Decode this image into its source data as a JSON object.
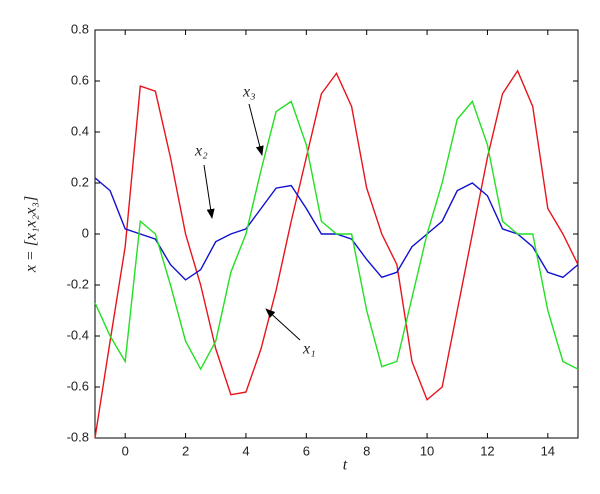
{
  "chart_data": {
    "type": "line",
    "xlabel": "t",
    "ylabel": "x = [x₁x₂x₃]",
    "x": [
      -1,
      -0.5,
      0,
      0.5,
      1,
      1.5,
      2,
      2.5,
      3,
      3.5,
      4,
      4.5,
      5,
      5.5,
      6,
      6.5,
      7,
      7.5,
      8,
      8.5,
      9,
      9.5,
      10,
      10.5,
      11,
      11.5,
      12,
      12.5,
      13,
      13.5,
      14,
      14.5,
      15
    ],
    "series": [
      {
        "color": "#e8141b",
        "values": [
          -0.8,
          -0.42,
          -0.05,
          0.58,
          0.56,
          0.3,
          0,
          -0.2,
          -0.45,
          -0.63,
          -0.62,
          -0.45,
          -0.22,
          0.05,
          0.3,
          0.55,
          0.63,
          0.5,
          0.18,
          0,
          -0.12,
          -0.5,
          -0.65,
          -0.6,
          -0.3,
          0,
          0.3,
          0.55,
          0.64,
          0.5,
          0.1,
          0,
          -0.12
        ]
      },
      {
        "color": "#1010d0",
        "values": [
          0.22,
          0.17,
          0.02,
          0,
          -0.02,
          -0.12,
          -0.18,
          -0.14,
          -0.03,
          0,
          0.02,
          0.1,
          0.18,
          0.19,
          0.1,
          0,
          0,
          -0.02,
          -0.1,
          -0.17,
          -0.15,
          -0.05,
          0,
          0.05,
          0.17,
          0.2,
          0.15,
          0.02,
          0,
          -0.05,
          -0.15,
          -0.17,
          -0.12
        ]
      },
      {
        "color": "#22e022",
        "values": [
          -0.27,
          -0.4,
          -0.5,
          0.05,
          0,
          -0.2,
          -0.42,
          -0.53,
          -0.42,
          -0.15,
          0,
          0.25,
          0.48,
          0.52,
          0.35,
          0.05,
          0,
          0,
          -0.3,
          -0.52,
          -0.5,
          -0.25,
          0,
          0.2,
          0.45,
          0.52,
          0.35,
          0.05,
          0,
          0,
          -0.3,
          -0.5,
          -0.53
        ]
      }
    ],
    "annotations": [
      "x₃",
      "x₂",
      "x₁"
    ],
    "xlim": [
      -1,
      15
    ],
    "xticks": [
      0,
      2,
      4,
      6,
      8,
      10,
      12,
      14
    ],
    "ylim": [
      -0.8,
      0.8
    ],
    "yticks": [
      -0.8,
      -0.6,
      -0.4,
      -0.2,
      0,
      0.2,
      0.4,
      0.6,
      0.8
    ],
    "grid": false
  }
}
